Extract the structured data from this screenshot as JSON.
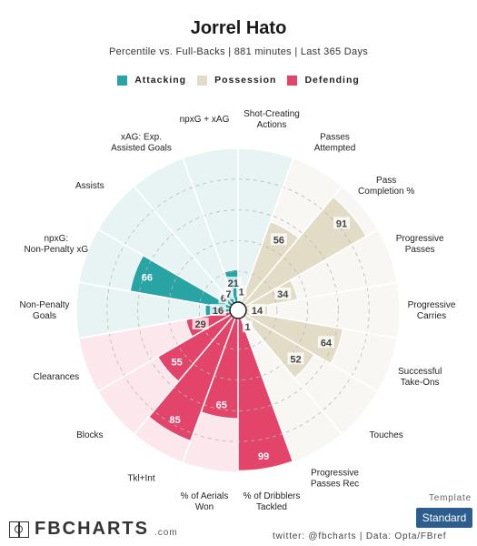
{
  "header": {
    "title": "Jorrel Hato",
    "subtitle": "Percentile vs. Full-Backs | 881 minutes | Last 365 Days"
  },
  "legend": [
    {
      "label": "Attacking",
      "color": "#28a4a4"
    },
    {
      "label": "Possession",
      "color": "#e2dcc6"
    },
    {
      "label": "Defending",
      "color": "#e2446a"
    }
  ],
  "colors": {
    "attacking_fill": "#28a4a4",
    "attacking_bg": "#e8f4f4",
    "possession_fill": "#e2dcc6",
    "possession_bg": "#f8f7f3",
    "defending_fill": "#e2446a",
    "defending_bg": "#fce7ec"
  },
  "chart_data": {
    "type": "polar-bar",
    "max": 100,
    "rings": [
      20,
      40,
      60,
      80
    ],
    "categories": [
      {
        "label": "Shot-Creating Actions",
        "group": "Attacking",
        "value": 1
      },
      {
        "label": "Passes Attempted",
        "group": "Possession",
        "value": 56
      },
      {
        "label": "Pass Completion %",
        "group": "Possession",
        "value": 91
      },
      {
        "label": "Progressive Passes",
        "group": "Possession",
        "value": 34
      },
      {
        "label": "Progressive Carries",
        "group": "Possession",
        "value": 14
      },
      {
        "label": "Successful Take-Ons",
        "group": "Possession",
        "value": 64
      },
      {
        "label": "Touches",
        "group": "Possession",
        "value": 52
      },
      {
        "label": "Progressive Passes Rec",
        "group": "Possession",
        "value": 1
      },
      {
        "label": "% of Dribblers Tackled",
        "group": "Defending",
        "value": 99
      },
      {
        "label": "% of Aerials Won",
        "group": "Defending",
        "value": 65
      },
      {
        "label": "Tkl+Int",
        "group": "Defending",
        "value": 85
      },
      {
        "label": "Blocks",
        "group": "Defending",
        "value": 55
      },
      {
        "label": "Clearances",
        "group": "Defending",
        "value": 29
      },
      {
        "label": "Non-Penalty Goals",
        "group": "Attacking",
        "value": 16
      },
      {
        "label": "npxG: Non-Penalty xG",
        "group": "Attacking",
        "value": 66
      },
      {
        "label": "Assists",
        "group": "Attacking",
        "value": 6
      },
      {
        "label": "xAG: Exp. Assisted Goals",
        "group": "Attacking",
        "value": 7
      },
      {
        "label": "npxG + xAG",
        "group": "Attacking",
        "value": 21
      }
    ]
  },
  "footer": {
    "logo": "FBCHARTS",
    "logo_domain": ".com",
    "template_label": "Template",
    "template_value": "Standard",
    "credits": "twitter: @fbcharts | Data: Opta/FBref"
  }
}
